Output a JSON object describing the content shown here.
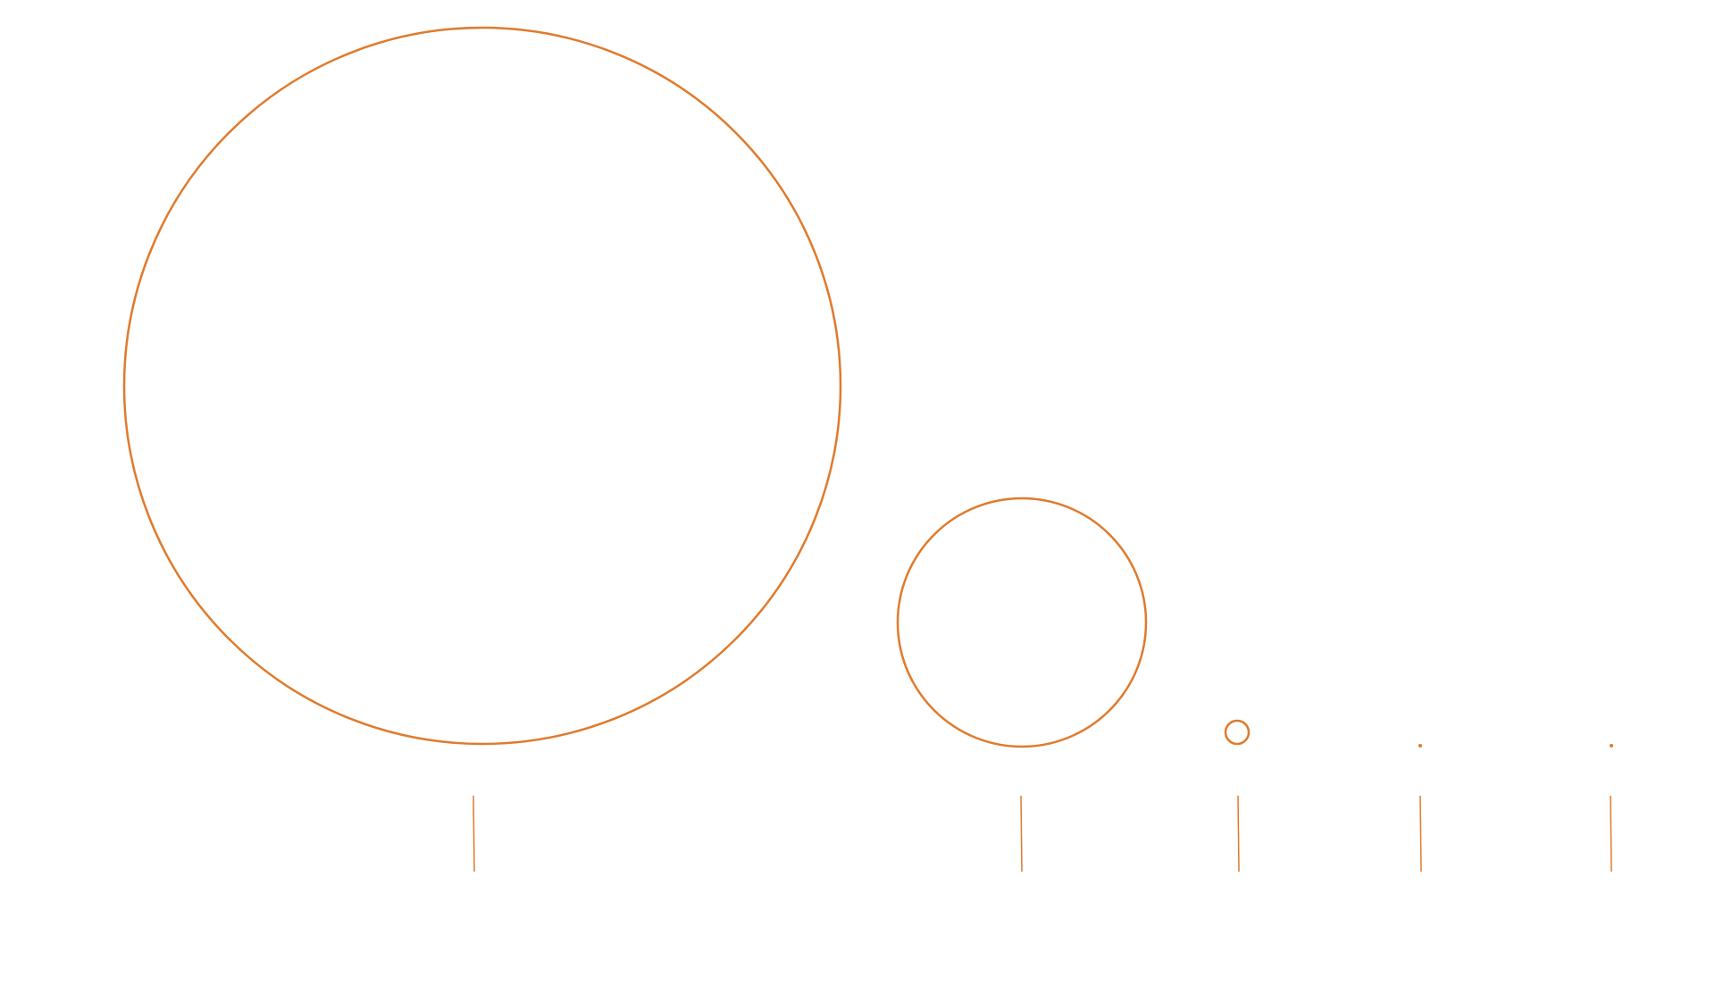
{
  "diagram": {
    "type": "size-comparison-circles",
    "stroke_color": "#E07A2C",
    "background_color": "#FFFFFF",
    "items": [
      {
        "name": "circle-1",
        "relative_size": 1.0
      },
      {
        "name": "circle-2",
        "relative_size": 0.348
      },
      {
        "name": "circle-3",
        "relative_size": 0.032
      },
      {
        "name": "circle-4",
        "relative_size": 0.003
      },
      {
        "name": "circle-5",
        "relative_size": 0.003
      }
    ]
  }
}
